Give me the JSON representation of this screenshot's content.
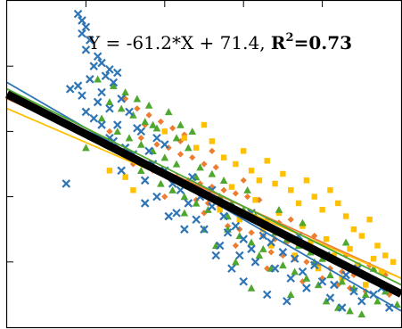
{
  "chart_data": {
    "type": "scatter",
    "title": "",
    "xlabel": "",
    "ylabel": "",
    "xlim": [
      0,
      1
    ],
    "ylim": [
      0,
      100
    ],
    "grid": false,
    "legend": "none",
    "annotation": {
      "prefix": "Y = -61.2*X + 71.4, ",
      "r2_label": "R",
      "r2_sup": "2",
      "r2_value": "=0.73"
    },
    "overall_fit": {
      "slope": -61.2,
      "intercept": 71.4,
      "color": "#000000"
    },
    "series": [
      {
        "marker": "x",
        "color": "#2E75B6",
        "fit": {
          "slope": -70,
          "intercept": 75
        },
        "points": [
          [
            0.18,
            96
          ],
          [
            0.19,
            94
          ],
          [
            0.2,
            92
          ],
          [
            0.19,
            90
          ],
          [
            0.21,
            88
          ],
          [
            0.2,
            85
          ],
          [
            0.23,
            83
          ],
          [
            0.24,
            81
          ],
          [
            0.22,
            80
          ],
          [
            0.26,
            79
          ],
          [
            0.25,
            77
          ],
          [
            0.28,
            78
          ],
          [
            0.27,
            75
          ],
          [
            0.21,
            76
          ],
          [
            0.18,
            74
          ],
          [
            0.16,
            73
          ],
          [
            0.19,
            71
          ],
          [
            0.24,
            72
          ],
          [
            0.29,
            70
          ],
          [
            0.23,
            69
          ],
          [
            0.26,
            67
          ],
          [
            0.2,
            66
          ],
          [
            0.31,
            66
          ],
          [
            0.22,
            64
          ],
          [
            0.28,
            62
          ],
          [
            0.33,
            61
          ],
          [
            0.26,
            58
          ],
          [
            0.3,
            55
          ],
          [
            0.34,
            60
          ],
          [
            0.38,
            58
          ],
          [
            0.36,
            54
          ],
          [
            0.4,
            56
          ],
          [
            0.29,
            48
          ],
          [
            0.35,
            45
          ],
          [
            0.4,
            48
          ],
          [
            0.42,
            44
          ],
          [
            0.38,
            40
          ],
          [
            0.44,
            42
          ],
          [
            0.46,
            38
          ],
          [
            0.43,
            35
          ],
          [
            0.49,
            40
          ],
          [
            0.52,
            37
          ],
          [
            0.48,
            33
          ],
          [
            0.55,
            34
          ],
          [
            0.5,
            30
          ],
          [
            0.56,
            29
          ],
          [
            0.58,
            31
          ],
          [
            0.6,
            27
          ],
          [
            0.54,
            25
          ],
          [
            0.62,
            24
          ],
          [
            0.65,
            28
          ],
          [
            0.59,
            22
          ],
          [
            0.67,
            26
          ],
          [
            0.7,
            23
          ],
          [
            0.63,
            20
          ],
          [
            0.73,
            21
          ],
          [
            0.68,
            18
          ],
          [
            0.75,
            17
          ],
          [
            0.72,
            15
          ],
          [
            0.78,
            19
          ],
          [
            0.8,
            14
          ],
          [
            0.76,
            12
          ],
          [
            0.83,
            13
          ],
          [
            0.86,
            16
          ],
          [
            0.82,
            9
          ],
          [
            0.88,
            11
          ],
          [
            0.9,
            8
          ],
          [
            0.85,
            6
          ],
          [
            0.93,
            10
          ],
          [
            0.95,
            12
          ],
          [
            0.66,
            10
          ],
          [
            0.71,
            8
          ],
          [
            0.6,
            14
          ],
          [
            0.57,
            18
          ],
          [
            0.53,
            22
          ],
          [
            0.45,
            30
          ],
          [
            0.41,
            34
          ],
          [
            0.37,
            50
          ],
          [
            0.32,
            53
          ],
          [
            0.27,
            57
          ],
          [
            0.24,
            62
          ],
          [
            0.15,
            44
          ],
          [
            0.35,
            38
          ],
          [
            0.47,
            46
          ],
          [
            0.52,
            42
          ],
          [
            0.62,
            35
          ],
          [
            0.74,
            28
          ],
          [
            0.81,
            22
          ],
          [
            0.89,
            18
          ],
          [
            0.97,
            6
          ]
        ]
      },
      {
        "marker": "diamond",
        "color": "#ED7D31",
        "fit": {
          "slope": -55,
          "intercept": 70
        },
        "points": [
          [
            0.3,
            70
          ],
          [
            0.33,
            67
          ],
          [
            0.36,
            65
          ],
          [
            0.39,
            63
          ],
          [
            0.42,
            61
          ],
          [
            0.45,
            59
          ],
          [
            0.34,
            58
          ],
          [
            0.38,
            56
          ],
          [
            0.41,
            55
          ],
          [
            0.44,
            53
          ],
          [
            0.47,
            52
          ],
          [
            0.5,
            50
          ],
          [
            0.53,
            49
          ],
          [
            0.37,
            48
          ],
          [
            0.4,
            47
          ],
          [
            0.43,
            46
          ],
          [
            0.46,
            45
          ],
          [
            0.49,
            44
          ],
          [
            0.52,
            43
          ],
          [
            0.55,
            42
          ],
          [
            0.58,
            41
          ],
          [
            0.61,
            40
          ],
          [
            0.48,
            39
          ],
          [
            0.51,
            38
          ],
          [
            0.54,
            37
          ],
          [
            0.57,
            36
          ],
          [
            0.6,
            35
          ],
          [
            0.63,
            34
          ],
          [
            0.66,
            33
          ],
          [
            0.69,
            32
          ],
          [
            0.56,
            31
          ],
          [
            0.59,
            30
          ],
          [
            0.62,
            29
          ],
          [
            0.65,
            28
          ],
          [
            0.68,
            27
          ],
          [
            0.71,
            26
          ],
          [
            0.74,
            25
          ],
          [
            0.77,
            24
          ],
          [
            0.67,
            23
          ],
          [
            0.7,
            22
          ],
          [
            0.73,
            21
          ],
          [
            0.76,
            20
          ],
          [
            0.79,
            19
          ],
          [
            0.82,
            18
          ],
          [
            0.85,
            17
          ],
          [
            0.88,
            16
          ],
          [
            0.8,
            15
          ],
          [
            0.84,
            13
          ],
          [
            0.87,
            12
          ],
          [
            0.91,
            11
          ],
          [
            0.94,
            14
          ],
          [
            0.97,
            10
          ],
          [
            0.35,
            62
          ],
          [
            0.44,
            57
          ],
          [
            0.52,
            54
          ],
          [
            0.6,
            45
          ],
          [
            0.64,
            39
          ],
          [
            0.72,
            33
          ],
          [
            0.78,
            28
          ],
          [
            0.86,
            22
          ],
          [
            0.92,
            19
          ],
          [
            0.96,
            16
          ],
          [
            0.26,
            60
          ],
          [
            0.32,
            50
          ],
          [
            0.28,
            55
          ],
          [
            0.4,
            40
          ],
          [
            0.5,
            35
          ],
          [
            0.58,
            25
          ],
          [
            0.66,
            18
          ],
          [
            0.75,
            14
          ]
        ]
      },
      {
        "marker": "square",
        "color": "#FFC000",
        "fit": {
          "slope": -52,
          "intercept": 67
        },
        "points": [
          [
            0.26,
            48
          ],
          [
            0.3,
            46
          ],
          [
            0.32,
            42
          ],
          [
            0.4,
            60
          ],
          [
            0.45,
            58
          ],
          [
            0.48,
            55
          ],
          [
            0.5,
            62
          ],
          [
            0.52,
            57
          ],
          [
            0.55,
            52
          ],
          [
            0.58,
            50
          ],
          [
            0.6,
            54
          ],
          [
            0.62,
            48
          ],
          [
            0.64,
            45
          ],
          [
            0.66,
            51
          ],
          [
            0.68,
            44
          ],
          [
            0.7,
            47
          ],
          [
            0.72,
            42
          ],
          [
            0.74,
            38
          ],
          [
            0.76,
            45
          ],
          [
            0.78,
            40
          ],
          [
            0.8,
            36
          ],
          [
            0.82,
            42
          ],
          [
            0.84,
            38
          ],
          [
            0.86,
            34
          ],
          [
            0.88,
            30
          ],
          [
            0.9,
            28
          ],
          [
            0.92,
            33
          ],
          [
            0.94,
            25
          ],
          [
            0.96,
            22
          ],
          [
            0.98,
            20
          ],
          [
            0.57,
            43
          ],
          [
            0.63,
            39
          ],
          [
            0.69,
            35
          ],
          [
            0.75,
            31
          ],
          [
            0.81,
            27
          ],
          [
            0.87,
            24
          ],
          [
            0.93,
            21
          ],
          [
            0.65,
            30
          ],
          [
            0.71,
            28
          ],
          [
            0.77,
            26
          ],
          [
            0.83,
            22
          ],
          [
            0.89,
            19
          ],
          [
            0.95,
            17
          ],
          [
            0.54,
            36
          ],
          [
            0.59,
            33
          ],
          [
            0.67,
            25
          ],
          [
            0.73,
            22
          ],
          [
            0.79,
            18
          ],
          [
            0.85,
            15
          ],
          [
            0.91,
            13
          ]
        ]
      },
      {
        "marker": "triangle",
        "color": "#4EA72E",
        "fit": {
          "slope": -60,
          "intercept": 73
        },
        "points": [
          [
            0.23,
            76
          ],
          [
            0.27,
            74
          ],
          [
            0.3,
            72
          ],
          [
            0.33,
            70
          ],
          [
            0.36,
            68
          ],
          [
            0.26,
            69
          ],
          [
            0.29,
            67
          ],
          [
            0.32,
            65
          ],
          [
            0.35,
            63
          ],
          [
            0.38,
            61
          ],
          [
            0.41,
            66
          ],
          [
            0.44,
            62
          ],
          [
            0.47,
            60
          ],
          [
            0.24,
            64
          ],
          [
            0.28,
            60
          ],
          [
            0.31,
            58
          ],
          [
            0.34,
            56
          ],
          [
            0.37,
            54
          ],
          [
            0.4,
            52
          ],
          [
            0.43,
            50
          ],
          [
            0.46,
            55
          ],
          [
            0.49,
            49
          ],
          [
            0.52,
            47
          ],
          [
            0.55,
            45
          ],
          [
            0.39,
            44
          ],
          [
            0.42,
            42
          ],
          [
            0.45,
            40
          ],
          [
            0.48,
            38
          ],
          [
            0.51,
            36
          ],
          [
            0.54,
            40
          ],
          [
            0.57,
            38
          ],
          [
            0.6,
            36
          ],
          [
            0.63,
            34
          ],
          [
            0.66,
            32
          ],
          [
            0.56,
            30
          ],
          [
            0.59,
            28
          ],
          [
            0.62,
            26
          ],
          [
            0.65,
            24
          ],
          [
            0.68,
            29
          ],
          [
            0.71,
            27
          ],
          [
            0.74,
            25
          ],
          [
            0.77,
            23
          ],
          [
            0.8,
            21
          ],
          [
            0.7,
            19
          ],
          [
            0.73,
            17
          ],
          [
            0.76,
            15
          ],
          [
            0.79,
            13
          ],
          [
            0.82,
            16
          ],
          [
            0.85,
            14
          ],
          [
            0.88,
            12
          ],
          [
            0.91,
            10
          ],
          [
            0.94,
            8
          ],
          [
            0.84,
            6
          ],
          [
            0.87,
            5
          ],
          [
            0.9,
            4
          ],
          [
            0.62,
            12
          ],
          [
            0.58,
            20
          ],
          [
            0.53,
            25
          ],
          [
            0.5,
            30
          ],
          [
            0.2,
            55
          ],
          [
            0.25,
            57
          ],
          [
            0.34,
            48
          ],
          [
            0.45,
            35
          ],
          [
            0.67,
            18
          ],
          [
            0.72,
            10
          ],
          [
            0.81,
            8
          ],
          [
            0.96,
            11
          ],
          [
            0.99,
            7
          ],
          [
            0.37,
            62
          ],
          [
            0.43,
            58
          ],
          [
            0.61,
            42
          ],
          [
            0.69,
            36
          ],
          [
            0.75,
            32
          ],
          [
            0.86,
            26
          ],
          [
            0.93,
            18
          ],
          [
            0.31,
            52
          ],
          [
            0.48,
            46
          ],
          [
            0.56,
            34
          ],
          [
            0.64,
            22
          ],
          [
            0.78,
            20
          ]
        ]
      }
    ]
  }
}
